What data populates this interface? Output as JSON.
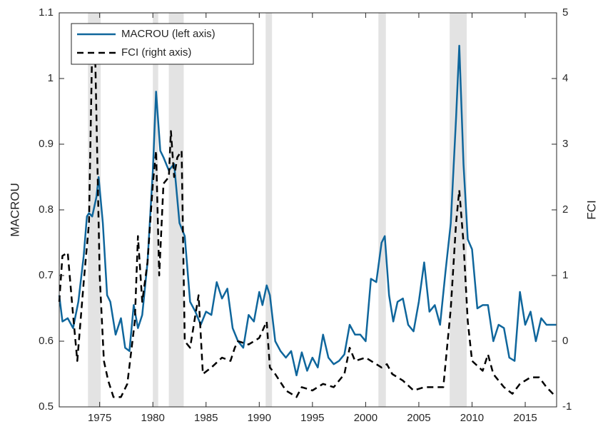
{
  "chart_data": {
    "type": "line",
    "y_label": "MACROU",
    "y2_label": "FCI",
    "xlim": [
      1971.2,
      2017.95
    ],
    "xticks": [
      1975,
      1980,
      1985,
      1990,
      1995,
      2000,
      2005,
      2010,
      2015
    ],
    "ylim": [
      0.5,
      1.1
    ],
    "yticks": [
      0.5,
      0.6,
      0.7,
      0.8,
      0.9,
      1,
      1.1
    ],
    "y2lim": [
      -1,
      5
    ],
    "y2ticks": [
      -1,
      0,
      1,
      2,
      3,
      4,
      5
    ],
    "shaded_periods": [
      [
        1973.9,
        1975.1
      ],
      [
        1980.0,
        1980.5
      ],
      [
        1981.5,
        1982.9
      ],
      [
        1990.6,
        1991.2
      ],
      [
        2001.2,
        2001.9
      ],
      [
        2007.9,
        2009.5
      ]
    ],
    "shade_color": "#e3e3e3",
    "legend_position": "upper-left",
    "series": [
      {
        "name": "MACROU (left axis)",
        "color": "#0f669c",
        "dash": false,
        "x": [
          1971.2,
          1971.5,
          1972,
          1972.5,
          1973,
          1973.5,
          1973.8,
          1974,
          1974.3,
          1974.7,
          1974.9,
          1975.3,
          1975.7,
          1976,
          1976.5,
          1977,
          1977.4,
          1977.8,
          1978.2,
          1978.6,
          1979,
          1979.5,
          1980,
          1980.3,
          1980.7,
          1981,
          1981.5,
          1982,
          1982.5,
          1983,
          1983.5,
          1984,
          1984.5,
          1985,
          1985.5,
          1986,
          1986.5,
          1987,
          1987.5,
          1988,
          1988.5,
          1989,
          1989.5,
          1990,
          1990.3,
          1990.7,
          1991,
          1991.5,
          1992,
          1992.5,
          1993,
          1993.5,
          1994,
          1994.5,
          1995,
          1995.5,
          1996,
          1996.5,
          1997,
          1997.5,
          1998,
          1998.5,
          1999,
          1999.5,
          2000,
          2000.5,
          2001,
          2001.5,
          2001.8,
          2002.2,
          2002.6,
          2003,
          2003.5,
          2004,
          2004.5,
          2005,
          2005.5,
          2006,
          2006.5,
          2007,
          2007.5,
          2008,
          2008.5,
          2008.8,
          2009.2,
          2009.6,
          2010,
          2010.5,
          2011,
          2011.5,
          2012,
          2012.5,
          2013,
          2013.5,
          2014,
          2014.5,
          2015,
          2015.5,
          2016,
          2016.5,
          2017,
          2017.9
        ],
        "values": [
          0.67,
          0.63,
          0.635,
          0.62,
          0.66,
          0.73,
          0.79,
          0.795,
          0.79,
          0.82,
          0.85,
          0.78,
          0.67,
          0.66,
          0.61,
          0.635,
          0.59,
          0.585,
          0.655,
          0.62,
          0.64,
          0.72,
          0.86,
          0.98,
          0.89,
          0.88,
          0.86,
          0.87,
          0.78,
          0.76,
          0.66,
          0.645,
          0.625,
          0.645,
          0.64,
          0.69,
          0.665,
          0.68,
          0.62,
          0.6,
          0.59,
          0.64,
          0.63,
          0.675,
          0.655,
          0.685,
          0.67,
          0.6,
          0.585,
          0.575,
          0.585,
          0.548,
          0.583,
          0.555,
          0.575,
          0.56,
          0.61,
          0.575,
          0.565,
          0.57,
          0.58,
          0.625,
          0.61,
          0.61,
          0.6,
          0.695,
          0.69,
          0.75,
          0.76,
          0.67,
          0.63,
          0.66,
          0.665,
          0.625,
          0.615,
          0.66,
          0.72,
          0.645,
          0.655,
          0.625,
          0.705,
          0.78,
          0.94,
          1.05,
          0.87,
          0.755,
          0.74,
          0.65,
          0.655,
          0.655,
          0.6,
          0.625,
          0.62,
          0.575,
          0.57,
          0.675,
          0.625,
          0.645,
          0.6,
          0.635,
          0.625,
          0.625
        ]
      },
      {
        "name": "FCI (right axis)",
        "color": "#000000",
        "dash": true,
        "axis": "y2",
        "x": [
          1971.2,
          1971.5,
          1972,
          1972.5,
          1972.9,
          1973.5,
          1974,
          1974.3,
          1974.6,
          1975,
          1975.4,
          1975.8,
          1976.3,
          1977,
          1977.6,
          1978.3,
          1978.6,
          1979,
          1979.5,
          1980,
          1980.3,
          1980.6,
          1981,
          1981.5,
          1981.7,
          1982,
          1982.3,
          1982.7,
          1983,
          1983.5,
          1984,
          1984.3,
          1984.7,
          1985.5,
          1986.5,
          1987.3,
          1987.7,
          1988,
          1989,
          1990,
          1990.7,
          1991,
          1991.5,
          1992.5,
          1993.5,
          1994,
          1995,
          1996,
          1997,
          1998,
          1998.5,
          1999,
          2000,
          2001,
          2001.5,
          2002,
          2002.5,
          2003.5,
          2004.5,
          2005.5,
          2006.5,
          2007.3,
          2008,
          2008.5,
          2008.8,
          2009.2,
          2009.6,
          2010,
          2011,
          2011.5,
          2012,
          2013,
          2013.8,
          2014.5,
          2015.5,
          2016.3,
          2017,
          2017.9
        ],
        "values": [
          0.6,
          1.3,
          1.35,
          0.4,
          -0.3,
          0.9,
          1.8,
          4.5,
          4.2,
          1.0,
          -0.3,
          -0.6,
          -0.85,
          -0.85,
          -0.65,
          0.3,
          1.6,
          0.6,
          1.2,
          2.4,
          2.9,
          1.0,
          2.4,
          2.5,
          3.2,
          2.5,
          2.8,
          2.9,
          0.0,
          -0.1,
          0.4,
          0.7,
          -0.5,
          -0.4,
          -0.25,
          -0.3,
          -0.1,
          0,
          -0.05,
          0.05,
          0.3,
          -0.4,
          -0.5,
          -0.75,
          -0.85,
          -0.7,
          -0.75,
          -0.65,
          -0.7,
          -0.5,
          -0.1,
          -0.3,
          -0.25,
          -0.35,
          -0.4,
          -0.35,
          -0.5,
          -0.6,
          -0.75,
          -0.7,
          -0.7,
          -0.7,
          0.5,
          1.8,
          2.3,
          1.5,
          0.3,
          -0.3,
          -0.45,
          -0.2,
          -0.5,
          -0.7,
          -0.8,
          -0.65,
          -0.55,
          -0.55,
          -0.7,
          -0.85
        ]
      }
    ]
  }
}
